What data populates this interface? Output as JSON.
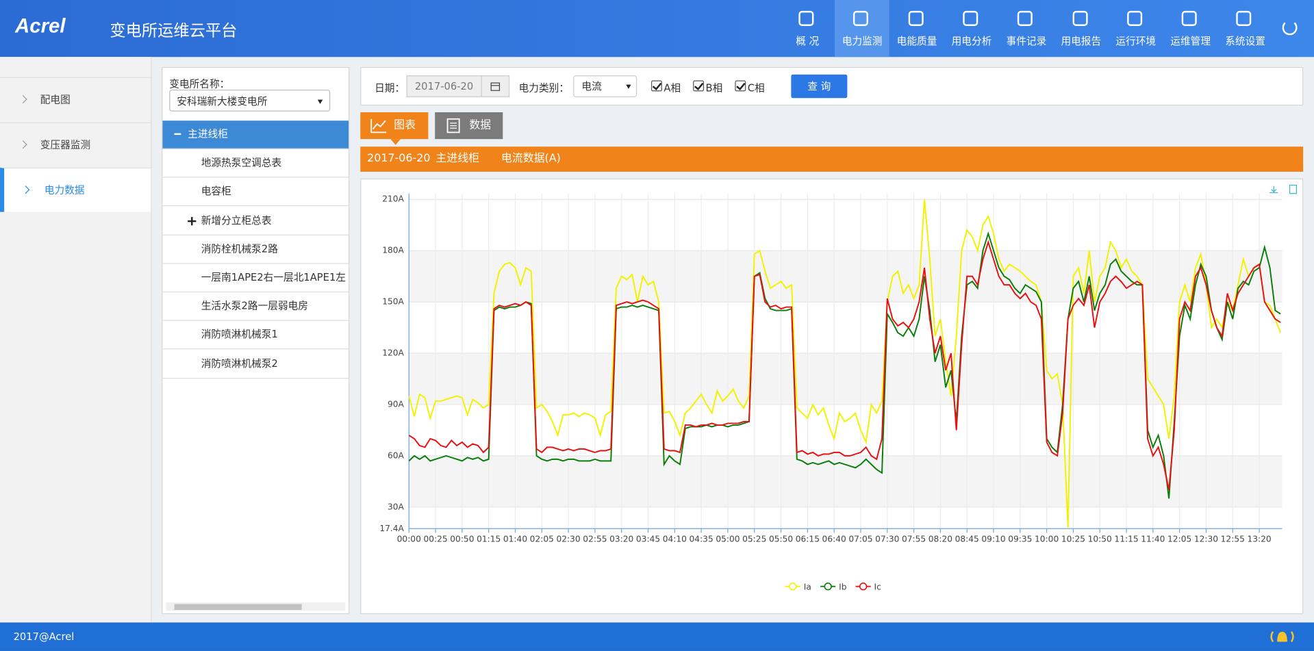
{
  "header": {
    "logo": "Acrel",
    "title": "变电所运维云平台",
    "nav": [
      "概 况",
      "电力监测",
      "电能质量",
      "用电分析",
      "事件记录",
      "用电报告",
      "运行环境",
      "运维管理",
      "系统设置"
    ],
    "active_nav": 1
  },
  "sidebar": {
    "items": [
      "配电图",
      "变压器监测",
      "电力数据"
    ],
    "active": 2
  },
  "tree": {
    "label": "变电所名称：",
    "station": "安科瑞新大楼变电所",
    "nodes": [
      "主进线柜",
      "地源热泵空调总表",
      "电容柜",
      "新增分立柜总表",
      "消防栓机械泵2路",
      "一层南1APE2右一层北1APE1左",
      "生活水泵2路一层弱电房",
      "消防喷淋机械泵1",
      "消防喷淋机械泵2"
    ],
    "active": 0
  },
  "query": {
    "date_label": "日期：",
    "date": "2017-06-20",
    "type_label": "电力类别：",
    "type": "电流",
    "phases": [
      "A相",
      "B相",
      "C相"
    ],
    "button": "查 询"
  },
  "tabs": [
    "图表",
    "数据"
  ],
  "banner": {
    "date": "2017-06-20",
    "cabinet": "主进线柜",
    "caption": "电流数据(A)"
  },
  "chart_data": {
    "type": "line",
    "grid": true,
    "categories": [
      "00:00",
      null,
      null,
      null,
      null,
      "00:25",
      null,
      null,
      null,
      null,
      "00:50",
      null,
      null,
      null,
      null,
      "01:15",
      null,
      null,
      null,
      null,
      "01:40",
      null,
      null,
      null,
      null,
      "02:05",
      null,
      null,
      null,
      null,
      "02:30",
      null,
      null,
      null,
      null,
      "02:55",
      null,
      null,
      null,
      null,
      "03:20",
      null,
      null,
      null,
      null,
      "03:45",
      null,
      null,
      null,
      null,
      "04:10",
      null,
      null,
      null,
      null,
      "04:35",
      null,
      null,
      null,
      null,
      "05:00",
      null,
      null,
      null,
      null,
      "05:25",
      null,
      null,
      null,
      null,
      "05:50",
      null,
      null,
      null,
      null,
      "06:15",
      null,
      null,
      null,
      null,
      "06:40",
      null,
      null,
      null,
      null,
      "07:05",
      null,
      null,
      null,
      null,
      "07:30",
      null,
      null,
      null,
      null,
      "07:55",
      null,
      null,
      null,
      null,
      "08:20",
      null,
      null,
      null,
      null,
      "08:45",
      null,
      null,
      null,
      null,
      "09:10",
      null,
      null,
      null,
      null,
      "09:35",
      null,
      null,
      null,
      null,
      "10:00",
      null,
      null,
      null,
      null,
      "10:25",
      null,
      null,
      null,
      null,
      "10:50",
      null,
      null,
      null,
      null,
      "11:15",
      null,
      null,
      null,
      null,
      "11:40",
      null,
      null,
      null,
      null,
      "12:05",
      null,
      null,
      null,
      null,
      "12:30",
      null,
      null,
      null,
      null,
      "12:55",
      null,
      null,
      null,
      null,
      "13:20",
      null,
      null,
      null,
      null
    ],
    "ylim": [
      17.4,
      213.4
    ],
    "yticks": [
      {
        "value": 17.4,
        "label": "17.4A"
      },
      {
        "value": 30,
        "label": "30A"
      },
      {
        "value": 60,
        "label": "60A"
      },
      {
        "value": 90,
        "label": "90A"
      },
      {
        "value": 120,
        "label": "120A"
      },
      {
        "value": 150,
        "label": "150A"
      },
      {
        "value": 180,
        "label": "180A"
      },
      {
        "value": 210,
        "label": "210A"
      }
    ],
    "series": [
      {
        "name": "Ia",
        "color": "#f2f200",
        "values": [
          95,
          83,
          96,
          94,
          82,
          92,
          92,
          93,
          94,
          95,
          94,
          84,
          93,
          91,
          88,
          90,
          155,
          168,
          172,
          173,
          170,
          160,
          170,
          168,
          88,
          90,
          86,
          80,
          72,
          84,
          84,
          85,
          83,
          85,
          84,
          82,
          72,
          84,
          86,
          158,
          165,
          163,
          166,
          150,
          165,
          160,
          162,
          150,
          85,
          86,
          80,
          72,
          85,
          88,
          92,
          96,
          90,
          85,
          98,
          92,
          95,
          99,
          92,
          88,
          95,
          178,
          180,
          168,
          158,
          160,
          162,
          158,
          160,
          88,
          85,
          82,
          90,
          84,
          88,
          78,
          70,
          85,
          80,
          82,
          85,
          75,
          68,
          90,
          85,
          92,
          150,
          165,
          168,
          155,
          160,
          152,
          160,
          210,
          175,
          130,
          140,
          115,
          95,
          130,
          180,
          192,
          188,
          180,
          195,
          200,
          190,
          175,
          168,
          172,
          170,
          168,
          165,
          162,
          160,
          150,
          110,
          105,
          108,
          90,
          18,
          165,
          170,
          155,
          180,
          150,
          165,
          170,
          185,
          180,
          170,
          175,
          168,
          165,
          160,
          105,
          100,
          95,
          90,
          70,
          95,
          150,
          160,
          150,
          170,
          178,
          160,
          135,
          140,
          135,
          150,
          145,
          160,
          175,
          165,
          170,
          172,
          150,
          148,
          140,
          132
        ]
      },
      {
        "name": "Ib",
        "color": "#0a7d0a",
        "values": [
          57,
          60,
          58,
          60,
          57,
          58,
          59,
          60,
          59,
          58,
          57,
          59,
          58,
          59,
          57,
          58,
          145,
          147,
          146,
          147,
          147,
          148,
          150,
          149,
          60,
          58,
          57,
          58,
          58,
          57,
          58,
          58,
          57,
          57,
          57,
          58,
          57,
          57,
          57,
          146,
          147,
          147,
          148,
          147,
          148,
          147,
          146,
          145,
          55,
          60,
          57,
          55,
          76,
          77,
          77,
          77,
          78,
          77,
          78,
          78,
          77,
          78,
          78,
          79,
          80,
          165,
          167,
          152,
          146,
          145,
          145,
          145,
          146,
          58,
          57,
          55,
          56,
          55,
          56,
          57,
          55,
          56,
          55,
          54,
          53,
          55,
          58,
          55,
          52,
          50,
          143,
          138,
          132,
          130,
          135,
          130,
          140,
          165,
          145,
          115,
          125,
          100,
          110,
          80,
          130,
          160,
          162,
          158,
          180,
          190,
          180,
          170,
          165,
          163,
          158,
          155,
          160,
          158,
          156,
          150,
          70,
          65,
          62,
          90,
          140,
          158,
          162,
          150,
          165,
          145,
          155,
          160,
          172,
          175,
          168,
          165,
          162,
          160,
          160,
          75,
          65,
          72,
          60,
          35,
          80,
          130,
          148,
          140,
          160,
          172,
          165,
          145,
          135,
          128,
          150,
          140,
          158,
          162,
          160,
          168,
          170,
          182,
          170,
          145,
          143
        ]
      },
      {
        "name": "Ic",
        "color": "#e81010",
        "values": [
          72,
          70,
          66,
          65,
          70,
          69,
          66,
          65,
          69,
          66,
          68,
          65,
          67,
          66,
          62,
          65,
          146,
          148,
          147,
          148,
          149,
          148,
          150,
          148,
          64,
          62,
          65,
          65,
          64,
          63,
          64,
          63,
          64,
          64,
          63,
          62,
          63,
          63,
          64,
          148,
          149,
          150,
          149,
          150,
          151,
          150,
          148,
          146,
          64,
          63,
          63,
          62,
          78,
          78,
          77,
          78,
          78,
          79,
          78,
          78,
          79,
          79,
          79,
          80,
          80,
          165,
          166,
          150,
          147,
          148,
          146,
          147,
          147,
          62,
          63,
          61,
          62,
          60,
          61,
          61,
          62,
          62,
          60,
          60,
          61,
          62,
          65,
          60,
          58,
          70,
          152,
          140,
          136,
          138,
          135,
          140,
          150,
          170,
          140,
          120,
          130,
          110,
          120,
          75,
          125,
          165,
          165,
          160,
          175,
          185,
          175,
          165,
          160,
          160,
          155,
          152,
          155,
          150,
          148,
          140,
          68,
          62,
          60,
          85,
          140,
          148,
          152,
          148,
          160,
          135,
          150,
          155,
          162,
          165,
          162,
          158,
          160,
          162,
          160,
          70,
          60,
          65,
          55,
          40,
          75,
          140,
          150,
          145,
          165,
          170,
          160,
          145,
          135,
          130,
          155,
          145,
          155,
          160,
          165,
          170,
          172,
          150,
          145,
          140,
          138
        ]
      }
    ]
  },
  "footer": "2017@Acrel"
}
